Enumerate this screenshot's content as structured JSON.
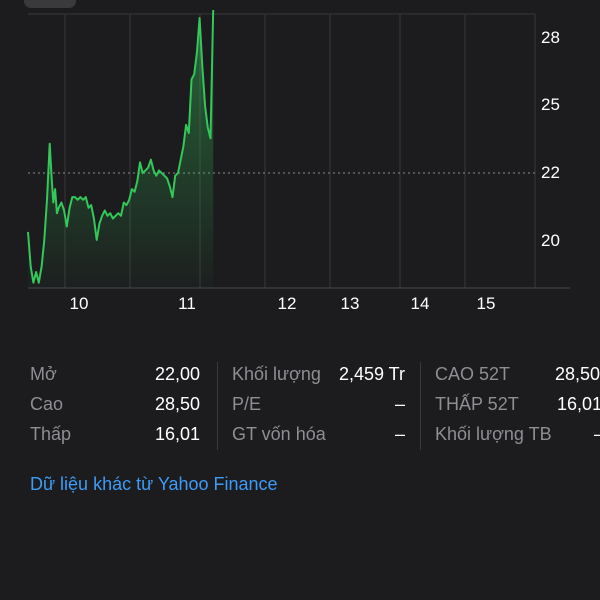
{
  "colors": {
    "background": "#1c1c1e",
    "line": "#34c759",
    "label": "#8e8e93",
    "link": "#3d9bf7",
    "grid": "#3a3a3c"
  },
  "chart_data": {
    "type": "area",
    "x_tick_labels": [
      "10",
      "11",
      "12",
      "13",
      "14",
      "15"
    ],
    "y_tick_labels": [
      "28",
      "25",
      "22",
      "20"
    ],
    "y_ticks": [
      28,
      25,
      22,
      20
    ],
    "xlim": [
      9.6,
      15.6
    ],
    "ylim": [
      18.2,
      28.6
    ],
    "reference_line": 22.5,
    "x": [
      9.6,
      9.63,
      9.66,
      9.69,
      9.72,
      9.75,
      9.78,
      9.81,
      9.84,
      9.86,
      9.88,
      9.9,
      9.92,
      9.94,
      9.97,
      10.0,
      10.03,
      10.06,
      10.09,
      10.12,
      10.15,
      10.18,
      10.21,
      10.24,
      10.27,
      10.3,
      10.33,
      10.36,
      10.39,
      10.42,
      10.45,
      10.48,
      10.51,
      10.54,
      10.57,
      10.6,
      10.63,
      10.66,
      10.69,
      10.72,
      10.75,
      10.78,
      10.81,
      10.84,
      10.87,
      10.9,
      10.93,
      10.96,
      10.99,
      11.02,
      11.05,
      11.08,
      11.11,
      11.14,
      11.17,
      11.2,
      11.23,
      11.26,
      11.29,
      11.32,
      11.35,
      11.38,
      11.41,
      11.44,
      11.47,
      11.5,
      11.53,
      11.56,
      11.59,
      11.62,
      11.65
    ],
    "values": [
      20.3,
      19.0,
      18.4,
      18.8,
      18.4,
      19.0,
      20.0,
      21.5,
      23.6,
      22.4,
      21.4,
      21.9,
      21.0,
      21.2,
      21.4,
      21.1,
      20.5,
      21.2,
      21.6,
      21.6,
      21.5,
      21.6,
      21.5,
      21.6,
      21.2,
      21.3,
      20.8,
      20.0,
      20.6,
      20.9,
      21.1,
      20.9,
      21.0,
      20.8,
      20.9,
      21.0,
      20.9,
      21.4,
      21.3,
      21.5,
      21.9,
      21.8,
      22.2,
      22.9,
      22.5,
      22.6,
      22.7,
      23.0,
      22.6,
      22.4,
      22.6,
      22.5,
      22.4,
      22.3,
      22.0,
      21.6,
      22.4,
      22.5,
      23.0,
      23.5,
      24.3,
      24.0,
      26.0,
      26.2,
      27.0,
      28.3,
      26.5,
      25.0,
      24.2,
      23.8,
      28.6
    ]
  },
  "stats": {
    "col1": [
      {
        "label": "Mở",
        "value": "22,00"
      },
      {
        "label": "Cao",
        "value": "28,50"
      },
      {
        "label": "Thấp",
        "value": "16,01"
      }
    ],
    "col2": [
      {
        "label": "Khối lượng",
        "value": "2,459 Tr"
      },
      {
        "label": "P/E",
        "value": "–"
      },
      {
        "label": "GT vốn hóa",
        "value": "–"
      }
    ],
    "col3": [
      {
        "label": "CAO 52T",
        "value": "28,50"
      },
      {
        "label": "THẤP 52T",
        "value": "16,01"
      },
      {
        "label": "Khối lượng TB",
        "value": "–"
      }
    ]
  },
  "footer": {
    "yahoo_link": "Dữ liệu khác từ Yahoo Finance"
  }
}
